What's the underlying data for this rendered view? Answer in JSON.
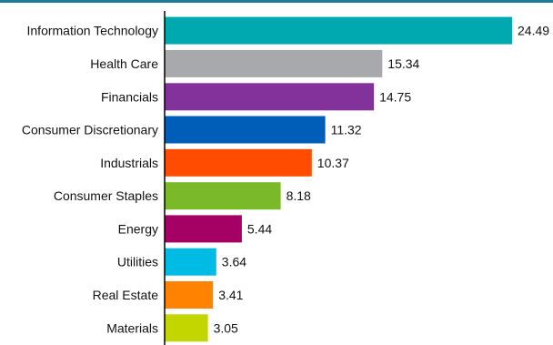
{
  "chart_data": {
    "type": "bar",
    "orientation": "horizontal",
    "title": "",
    "xlabel": "",
    "ylabel": "",
    "categories": [
      "Information Technology",
      "Health Care",
      "Financials",
      "Consumer Discretionary",
      "Industrials",
      "Consumer Staples",
      "Energy",
      "Utilities",
      "Real Estate",
      "Materials"
    ],
    "values": [
      24.49,
      15.34,
      14.75,
      11.32,
      10.37,
      8.18,
      5.44,
      3.64,
      3.41,
      3.05
    ],
    "value_labels": [
      "24.49",
      "15.34",
      "14.75",
      "11.32",
      "10.37",
      "8.18",
      "5.44",
      "3.64",
      "3.41",
      "3.05"
    ],
    "colors": [
      "#00a8b0",
      "#a7a9ac",
      "#84329b",
      "#005eb8",
      "#ff4c00",
      "#7ab929",
      "#a50064",
      "#00bce4",
      "#ff8200",
      "#c4d600"
    ],
    "xlim": [
      0,
      26.5
    ],
    "grid": false,
    "legend": "none"
  }
}
